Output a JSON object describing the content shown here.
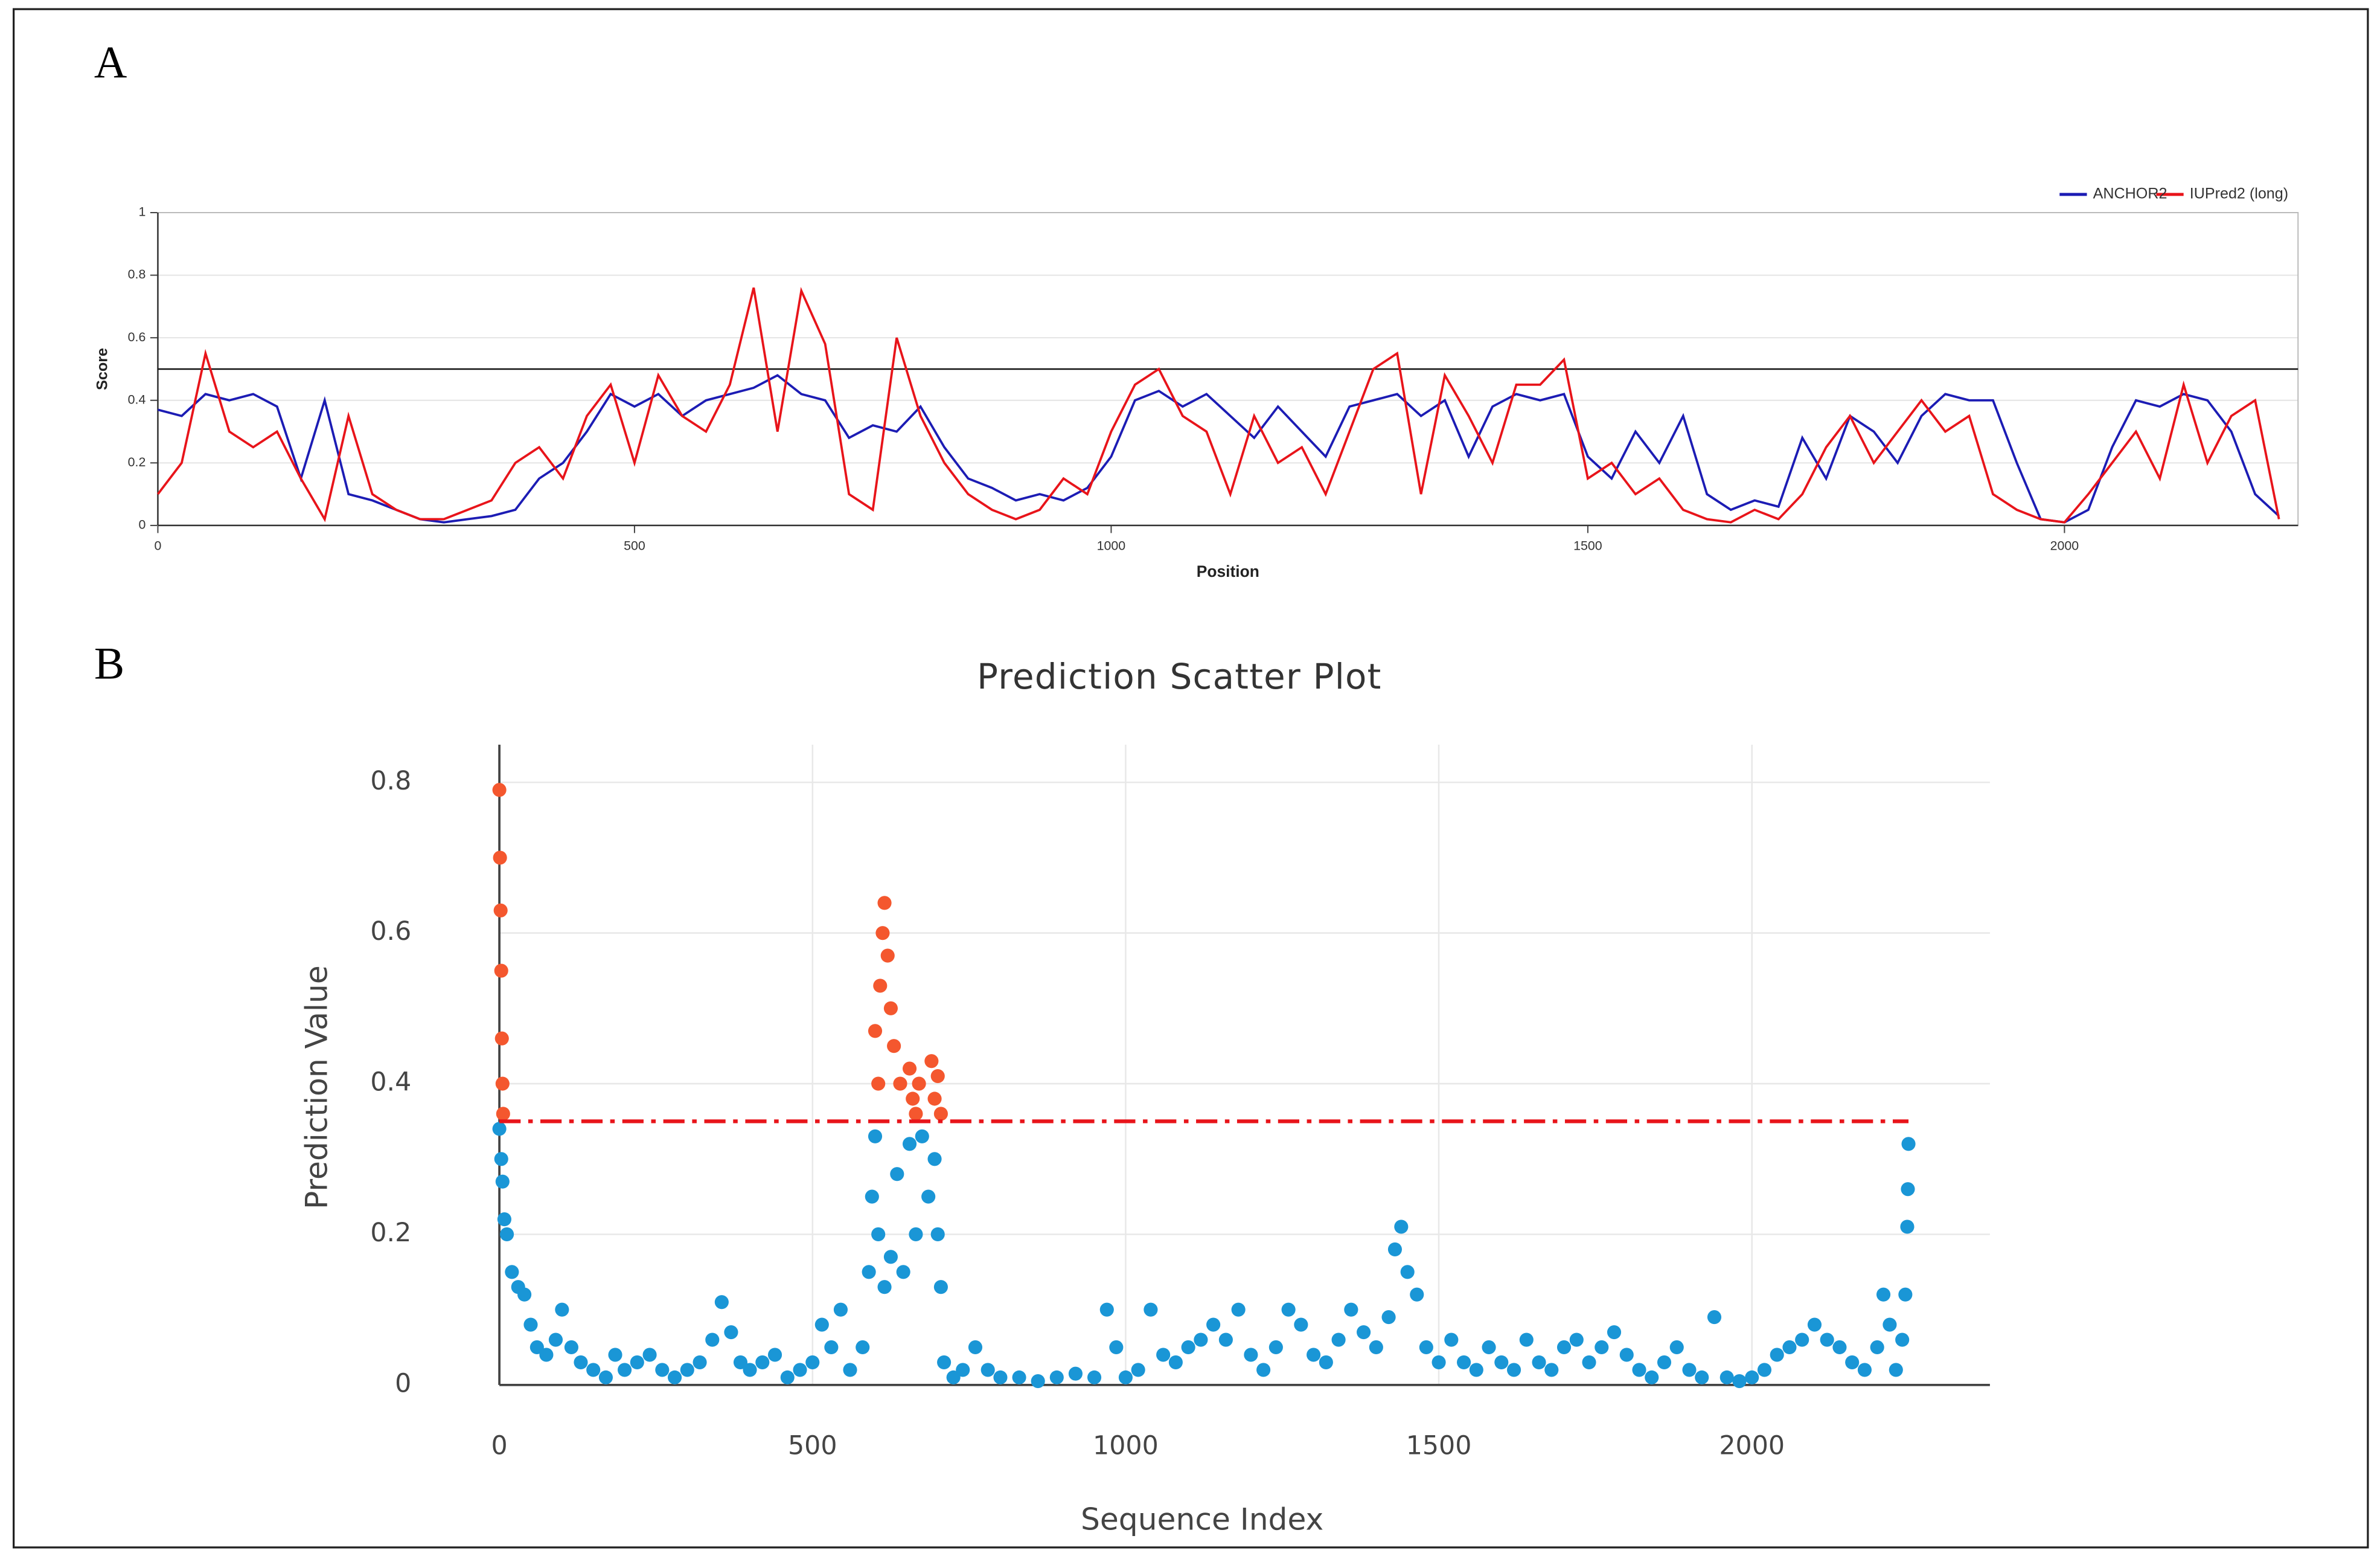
{
  "chart_data": [
    {
      "type": "line",
      "panel": "A",
      "xlabel": "Position",
      "ylabel": "Score",
      "xlim": [
        0,
        2245
      ],
      "ylim": [
        0,
        1
      ],
      "xticks": [
        0,
        500,
        1000,
        1500,
        2000
      ],
      "yticks": [
        0,
        0.2,
        0.4,
        0.6,
        0.8,
        1
      ],
      "grid": true,
      "legend": "upper right",
      "threshold": 0.5,
      "x": [
        0,
        25,
        50,
        75,
        100,
        125,
        150,
        175,
        200,
        225,
        250,
        275,
        300,
        325,
        350,
        375,
        400,
        425,
        450,
        475,
        500,
        525,
        550,
        575,
        600,
        625,
        650,
        675,
        700,
        725,
        750,
        775,
        800,
        825,
        850,
        875,
        900,
        925,
        950,
        975,
        1000,
        1025,
        1050,
        1075,
        1100,
        1125,
        1150,
        1175,
        1200,
        1225,
        1250,
        1275,
        1300,
        1325,
        1350,
        1375,
        1400,
        1425,
        1450,
        1475,
        1500,
        1525,
        1550,
        1575,
        1600,
        1625,
        1650,
        1675,
        1700,
        1725,
        1750,
        1775,
        1800,
        1825,
        1850,
        1875,
        1900,
        1925,
        1950,
        1975,
        2000,
        2025,
        2050,
        2075,
        2100,
        2125,
        2150,
        2175,
        2200,
        2225
      ],
      "series": [
        {
          "name": "ANCHOR2",
          "color": "#1c1cb4",
          "values": [
            0.37,
            0.35,
            0.42,
            0.4,
            0.42,
            0.38,
            0.15,
            0.4,
            0.1,
            0.08,
            0.05,
            0.02,
            0.01,
            0.02,
            0.03,
            0.05,
            0.15,
            0.2,
            0.3,
            0.42,
            0.38,
            0.42,
            0.35,
            0.4,
            0.42,
            0.44,
            0.48,
            0.42,
            0.4,
            0.28,
            0.32,
            0.3,
            0.38,
            0.25,
            0.15,
            0.12,
            0.08,
            0.1,
            0.08,
            0.12,
            0.22,
            0.4,
            0.43,
            0.38,
            0.42,
            0.35,
            0.28,
            0.38,
            0.3,
            0.22,
            0.38,
            0.4,
            0.42,
            0.35,
            0.4,
            0.22,
            0.38,
            0.42,
            0.4,
            0.42,
            0.22,
            0.15,
            0.3,
            0.2,
            0.35,
            0.1,
            0.05,
            0.08,
            0.06,
            0.28,
            0.15,
            0.35,
            0.3,
            0.2,
            0.35,
            0.42,
            0.4,
            0.4,
            0.2,
            0.02,
            0.01,
            0.05,
            0.25,
            0.4,
            0.38,
            0.42,
            0.4,
            0.3,
            0.1,
            0.03
          ]
        },
        {
          "name": "IUPred2 (long)",
          "color": "#e8141a",
          "values": [
            0.1,
            0.2,
            0.55,
            0.3,
            0.25,
            0.3,
            0.15,
            0.02,
            0.35,
            0.1,
            0.05,
            0.02,
            0.02,
            0.05,
            0.08,
            0.2,
            0.25,
            0.15,
            0.35,
            0.45,
            0.2,
            0.48,
            0.35,
            0.3,
            0.45,
            0.76,
            0.3,
            0.75,
            0.58,
            0.1,
            0.05,
            0.6,
            0.35,
            0.2,
            0.1,
            0.05,
            0.02,
            0.05,
            0.15,
            0.1,
            0.3,
            0.45,
            0.5,
            0.35,
            0.3,
            0.1,
            0.35,
            0.2,
            0.25,
            0.1,
            0.3,
            0.5,
            0.55,
            0.1,
            0.48,
            0.35,
            0.2,
            0.45,
            0.45,
            0.53,
            0.15,
            0.2,
            0.1,
            0.15,
            0.05,
            0.02,
            0.01,
            0.05,
            0.02,
            0.1,
            0.25,
            0.35,
            0.2,
            0.3,
            0.4,
            0.3,
            0.35,
            0.1,
            0.05,
            0.02,
            0.01,
            0.1,
            0.2,
            0.3,
            0.15,
            0.45,
            0.2,
            0.35,
            0.4,
            0.02
          ]
        }
      ]
    },
    {
      "type": "scatter",
      "panel": "B",
      "title": "Prediction Scatter Plot",
      "xlabel": "Sequence Index",
      "ylabel": "Prediction Value",
      "xlim": [
        0,
        2380
      ],
      "ylim": [
        0,
        0.85
      ],
      "xticks": [
        0,
        500,
        1000,
        1500,
        2000
      ],
      "yticks": [
        0,
        0.2,
        0.4,
        0.6,
        0.8
      ],
      "grid": true,
      "threshold": 0.35,
      "threshold_color": "#e8141a",
      "series": [
        {
          "color": "#1a96d6",
          "x": [
            0,
            3,
            5,
            8,
            12,
            20,
            30,
            40,
            50,
            60,
            75,
            90,
            100,
            115,
            130,
            150,
            170,
            185,
            200,
            220,
            240,
            260,
            280,
            300,
            320,
            340,
            355,
            370,
            385,
            400,
            420,
            440,
            460,
            480,
            500,
            515,
            530,
            545,
            560,
            580,
            590,
            595,
            600,
            605,
            615,
            625,
            635,
            645,
            655,
            665,
            675,
            685,
            695,
            700,
            705,
            710,
            725,
            740,
            760,
            780,
            800,
            830,
            860,
            890,
            920,
            950,
            970,
            985,
            1000,
            1020,
            1040,
            1060,
            1080,
            1100,
            1120,
            1140,
            1160,
            1180,
            1200,
            1220,
            1240,
            1260,
            1280,
            1300,
            1320,
            1340,
            1360,
            1380,
            1400,
            1420,
            1430,
            1440,
            1450,
            1465,
            1480,
            1500,
            1520,
            1540,
            1560,
            1580,
            1600,
            1620,
            1640,
            1660,
            1680,
            1700,
            1720,
            1740,
            1760,
            1780,
            1800,
            1820,
            1840,
            1860,
            1880,
            1900,
            1920,
            1940,
            1960,
            1980,
            2000,
            2020,
            2040,
            2060,
            2080,
            2100,
            2120,
            2140,
            2160,
            2180,
            2200,
            2210,
            2220,
            2230,
            2240,
            2245,
            2248,
            2249,
            2250
          ],
          "values": [
            0.34,
            0.3,
            0.27,
            0.22,
            0.2,
            0.15,
            0.13,
            0.12,
            0.08,
            0.05,
            0.04,
            0.06,
            0.1,
            0.05,
            0.03,
            0.02,
            0.01,
            0.04,
            0.02,
            0.03,
            0.04,
            0.02,
            0.01,
            0.02,
            0.03,
            0.06,
            0.11,
            0.07,
            0.03,
            0.02,
            0.03,
            0.04,
            0.01,
            0.02,
            0.03,
            0.08,
            0.05,
            0.1,
            0.02,
            0.05,
            0.15,
            0.25,
            0.33,
            0.2,
            0.13,
            0.17,
            0.28,
            0.15,
            0.32,
            0.2,
            0.33,
            0.25,
            0.3,
            0.2,
            0.13,
            0.03,
            0.01,
            0.02,
            0.05,
            0.02,
            0.01,
            0.01,
            0.005,
            0.01,
            0.015,
            0.01,
            0.1,
            0.05,
            0.01,
            0.02,
            0.1,
            0.04,
            0.03,
            0.05,
            0.06,
            0.08,
            0.06,
            0.1,
            0.04,
            0.02,
            0.05,
            0.1,
            0.08,
            0.04,
            0.03,
            0.06,
            0.1,
            0.07,
            0.05,
            0.09,
            0.18,
            0.21,
            0.15,
            0.12,
            0.05,
            0.03,
            0.06,
            0.03,
            0.02,
            0.05,
            0.03,
            0.02,
            0.06,
            0.03,
            0.02,
            0.05,
            0.06,
            0.03,
            0.05,
            0.07,
            0.04,
            0.02,
            0.01,
            0.03,
            0.05,
            0.02,
            0.01,
            0.09,
            0.01,
            0.005,
            0.01,
            0.02,
            0.04,
            0.05,
            0.06,
            0.08,
            0.06,
            0.05,
            0.03,
            0.02,
            0.05,
            0.12,
            0.08,
            0.02,
            0.06,
            0.12,
            0.21,
            0.26,
            0.32
          ]
        },
        {
          "color": "#f4572e",
          "x": [
            0,
            1,
            2,
            3,
            4,
            5,
            6,
            600,
            605,
            608,
            612,
            615,
            620,
            625,
            630,
            640,
            655,
            660,
            665,
            670,
            690,
            695,
            700,
            705
          ],
          "values": [
            0.79,
            0.7,
            0.63,
            0.55,
            0.46,
            0.4,
            0.36,
            0.47,
            0.4,
            0.53,
            0.6,
            0.64,
            0.57,
            0.5,
            0.45,
            0.4,
            0.42,
            0.38,
            0.36,
            0.4,
            0.43,
            0.38,
            0.41,
            0.36
          ]
        }
      ]
    }
  ]
}
